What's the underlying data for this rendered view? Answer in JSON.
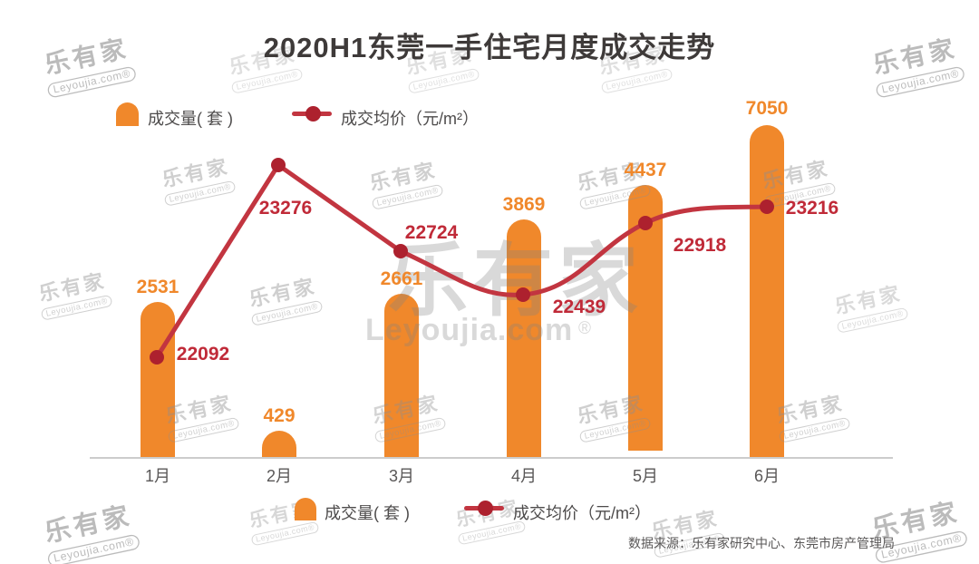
{
  "title": "2020H1东莞一手住宅月度成交走势",
  "legend_top": {
    "bar_label": "成交量( 套 )",
    "line_label": "成交均价（元/m²）"
  },
  "legend_bottom": {
    "bar_label": "成交量( 套 )",
    "line_label": "成交均价（元/m²）"
  },
  "watermark": {
    "name": "乐有家",
    "domain": "Leyoujia.com",
    "reg": "®"
  },
  "source": "数据来源：乐有家研究中心、东莞市房产管理局",
  "chart_data": {
    "type": "bar+line",
    "categories": [
      "1月",
      "2月",
      "3月",
      "4月",
      "5月",
      "6月"
    ],
    "series": [
      {
        "name": "成交量( 套 )",
        "type": "bar",
        "color": "#F0882B",
        "values": [
          2531,
          429,
          2661,
          3869,
          4437,
          7050
        ]
      },
      {
        "name": "成交均价（元/m²）",
        "type": "line",
        "color": "#C23540",
        "marker_color": "#AD212E",
        "values": [
          22092,
          23276,
          22724,
          22439,
          22918,
          23216
        ]
      }
    ],
    "title": "2020H1东莞一手住宅月度成交走势",
    "xlabel": "",
    "ylabel": "",
    "legend_position": "top-left and bottom-center",
    "grid": false
  },
  "colors": {
    "bar_orange": "#F0882B",
    "line_red": "#C23540",
    "dot_red": "#AD212E",
    "price_text": "#C02A38",
    "title_text": "#3E3A39",
    "axis_gray": "#CCCCCC",
    "label_gray": "#595757"
  }
}
